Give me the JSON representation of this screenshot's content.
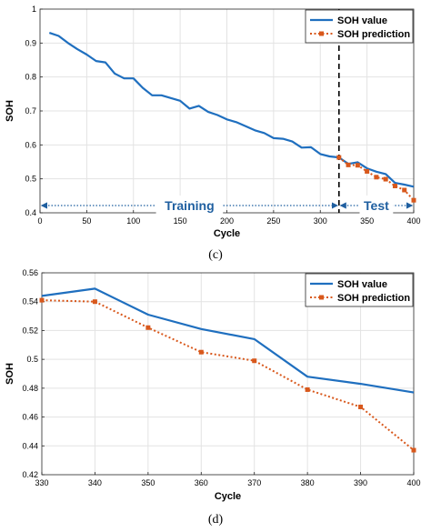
{
  "colors": {
    "value": "#1f6fbf",
    "prediction": "#d8581c",
    "grid": "#e3e3e3",
    "region": "#1f5fa0"
  },
  "chart_data": [
    {
      "type": "line",
      "caption": "(c)",
      "xlabel": "Cycle",
      "ylabel": "SOH",
      "xlim": [
        0,
        400
      ],
      "ylim": [
        0.4,
        1.0
      ],
      "xticks": [
        0,
        50,
        100,
        150,
        200,
        250,
        300,
        350,
        400
      ],
      "yticks": [
        0.4,
        0.5,
        0.6,
        0.7,
        0.8,
        0.9,
        1.0
      ],
      "xtick_labels": [
        "0",
        "50",
        "100",
        "150",
        "200",
        "250",
        "300",
        "350",
        "400"
      ],
      "ytick_labels": [
        "0.4",
        "0.5",
        "0.6",
        "0.7",
        "0.8",
        "0.9",
        "1"
      ],
      "grid": true,
      "legend_position": "top-right",
      "split_x": 320,
      "regions": [
        {
          "label": "Training",
          "x0": 0,
          "x1": 320
        },
        {
          "label": "Test",
          "x0": 320,
          "x1": 400
        }
      ],
      "series": [
        {
          "name": "SOH value",
          "style": "solid",
          "x": [
            10,
            20,
            30,
            40,
            50,
            60,
            70,
            80,
            90,
            100,
            110,
            120,
            130,
            140,
            150,
            160,
            170,
            180,
            190,
            200,
            210,
            220,
            230,
            240,
            250,
            260,
            270,
            280,
            290,
            300,
            310,
            320,
            330,
            340,
            350,
            360,
            370,
            380,
            390,
            400
          ],
          "y": [
            0.93,
            0.921,
            0.9,
            0.882,
            0.866,
            0.847,
            0.843,
            0.81,
            0.796,
            0.796,
            0.768,
            0.746,
            0.746,
            0.738,
            0.73,
            0.707,
            0.715,
            0.697,
            0.688,
            0.675,
            0.667,
            0.655,
            0.643,
            0.635,
            0.62,
            0.618,
            0.61,
            0.592,
            0.593,
            0.573,
            0.566,
            0.563,
            0.544,
            0.549,
            0.531,
            0.521,
            0.514,
            0.488,
            0.483,
            0.477
          ]
        },
        {
          "name": "SOH prediction",
          "style": "dotted-markers",
          "x": [
            320,
            330,
            340,
            350,
            360,
            370,
            380,
            390,
            400
          ],
          "y": [
            0.563,
            0.541,
            0.54,
            0.522,
            0.505,
            0.499,
            0.479,
            0.467,
            0.437
          ]
        }
      ]
    },
    {
      "type": "line",
      "caption": "(d)",
      "xlabel": "Cycle",
      "ylabel": "SOH",
      "xlim": [
        330,
        400
      ],
      "ylim": [
        0.42,
        0.56
      ],
      "xticks": [
        330,
        340,
        350,
        360,
        370,
        380,
        390,
        400
      ],
      "yticks": [
        0.42,
        0.44,
        0.46,
        0.48,
        0.5,
        0.52,
        0.54,
        0.56
      ],
      "xtick_labels": [
        "330",
        "340",
        "350",
        "360",
        "370",
        "380",
        "390",
        "400"
      ],
      "ytick_labels": [
        "0.42",
        "0.44",
        "0.46",
        "0.48",
        "0.5",
        "0.52",
        "0.54",
        "0.56"
      ],
      "grid": true,
      "legend_position": "top-right",
      "series": [
        {
          "name": "SOH value",
          "style": "solid",
          "x": [
            330,
            340,
            350,
            360,
            370,
            380,
            390,
            400
          ],
          "y": [
            0.544,
            0.549,
            0.531,
            0.521,
            0.514,
            0.488,
            0.483,
            0.477
          ]
        },
        {
          "name": "SOH prediction",
          "style": "dotted-markers",
          "x": [
            330,
            340,
            350,
            360,
            370,
            380,
            390,
            400
          ],
          "y": [
            0.541,
            0.54,
            0.522,
            0.505,
            0.499,
            0.479,
            0.467,
            0.437
          ]
        }
      ]
    }
  ]
}
